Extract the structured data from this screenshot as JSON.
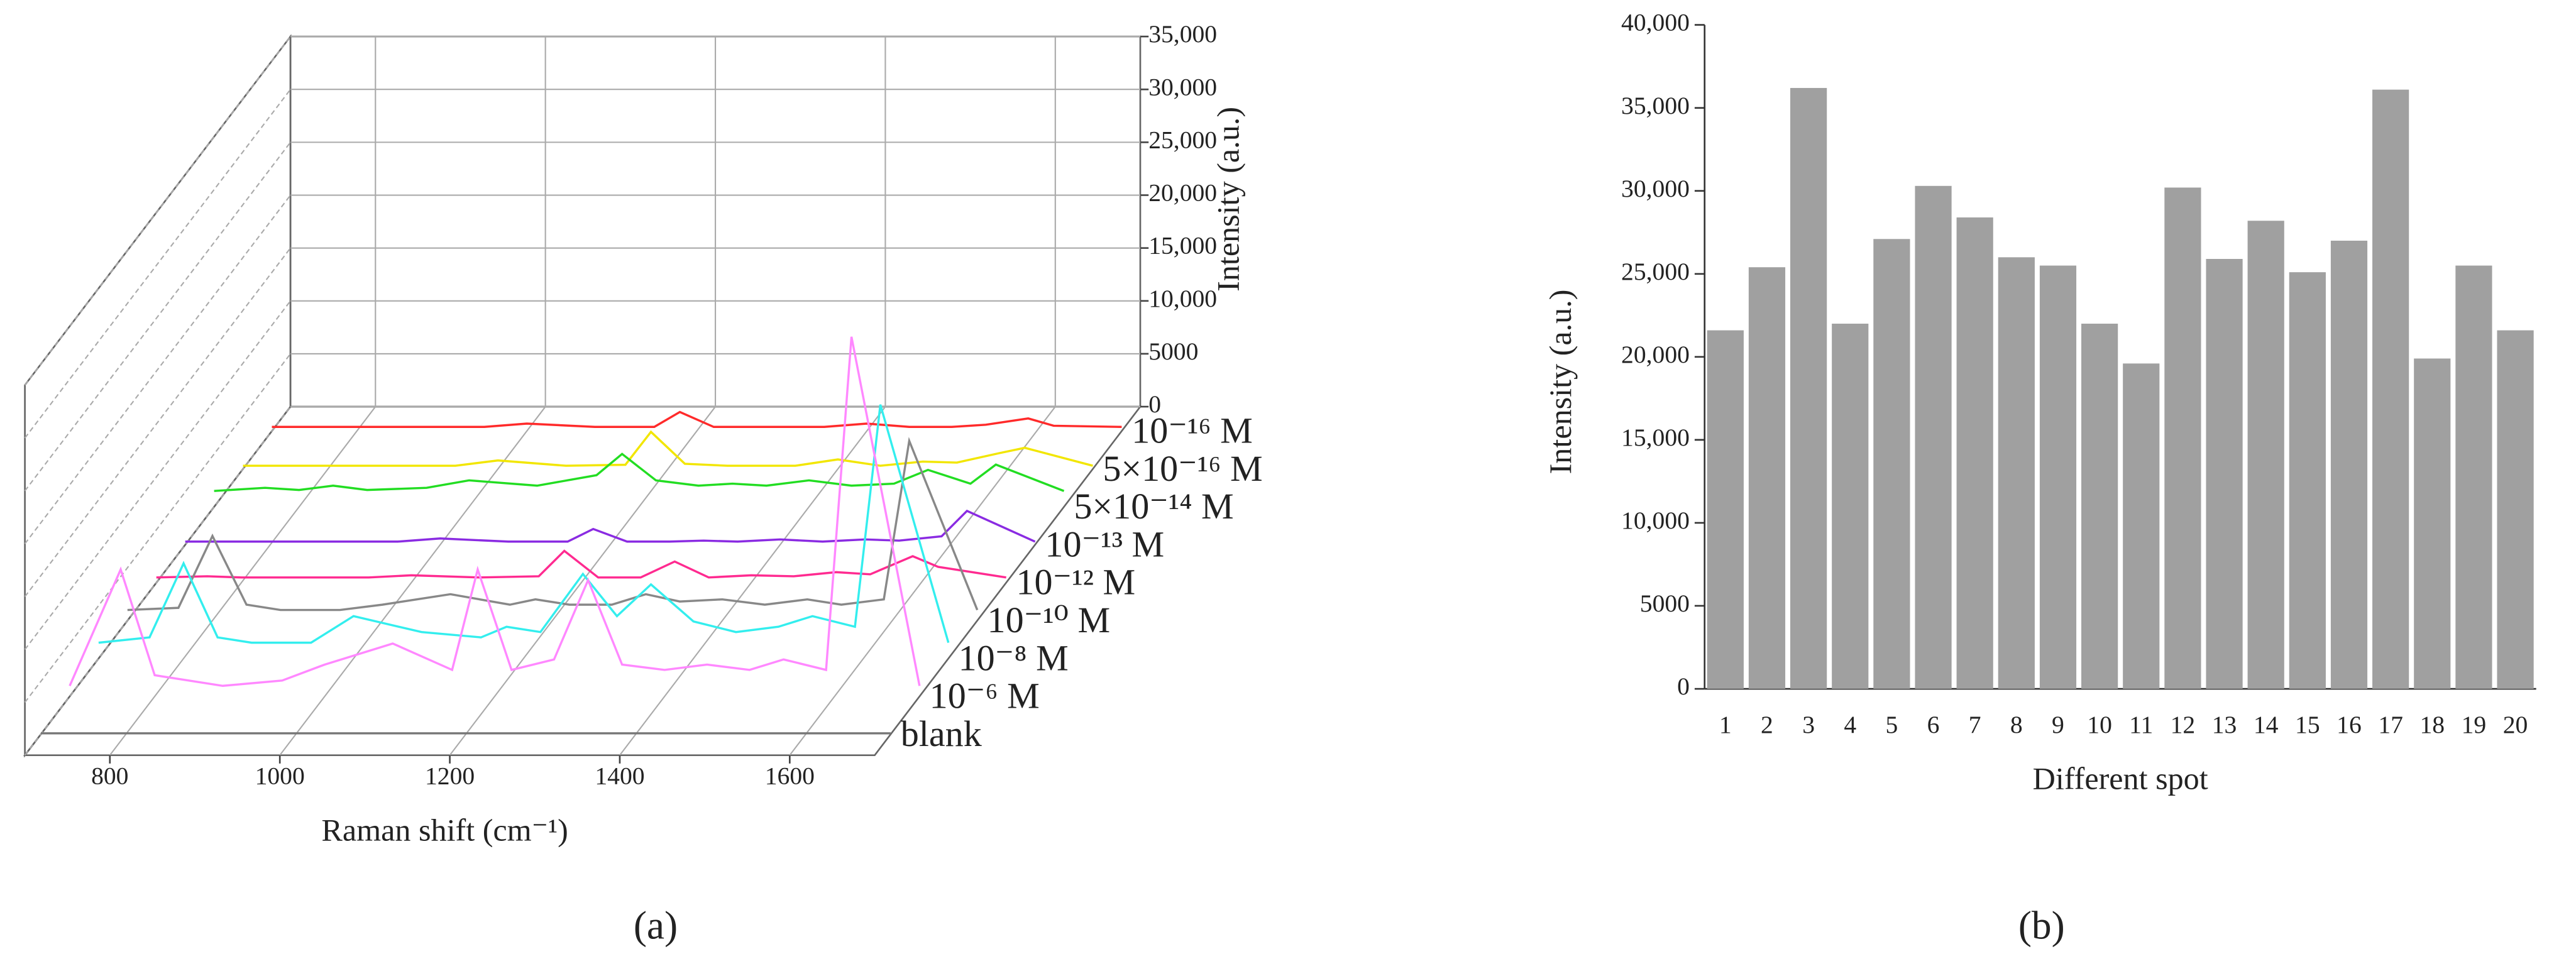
{
  "chart_data": [
    {
      "type": "waterfall",
      "label": "(a)",
      "x_label": "Raman shift (cm⁻¹)",
      "y_label": "Intensity (a.u.)",
      "x": [
        700,
        760,
        800,
        840,
        880,
        950,
        1000,
        1080,
        1150,
        1180,
        1220,
        1270,
        1310,
        1350,
        1400,
        1450,
        1500,
        1540,
        1590,
        1620,
        1700
      ],
      "xlim": [
        700,
        1700
      ],
      "xticks": [
        800,
        1000,
        1200,
        1400,
        1600
      ],
      "ylim": [
        0,
        35000
      ],
      "yticks": [
        0,
        5000,
        {
          "value": 10000,
          "label": "10,000"
        },
        {
          "value": 15000,
          "label": "15,000"
        },
        {
          "value": 20000,
          "label": "20,000"
        },
        {
          "value": 25000,
          "label": "25,000"
        },
        {
          "value": 30000,
          "label": "30,000"
        },
        {
          "value": 35000,
          "label": "35,000"
        }
      ],
      "grid": true,
      "series": [
        {
          "name": "10⁻¹⁶ M",
          "color": "#ff2a2a",
          "values": [
            400,
            400,
            400,
            400,
            400,
            400,
            700,
            400,
            400,
            1800,
            400,
            400,
            400,
            400,
            700,
            400,
            400,
            600,
            1200,
            500,
            400
          ]
        },
        {
          "name": "5×10⁻¹⁶ M",
          "color": "#f2e600",
          "values": [
            300,
            300,
            300,
            300,
            300,
            300,
            800,
            300,
            400,
            3500,
            500,
            300,
            300,
            300,
            900,
            300,
            700,
            600,
            1500,
            2000,
            300
          ]
        },
        {
          "name": "5×10⁻¹⁴ M",
          "color": "#22dd22",
          "values": [
            1500,
            1800,
            1600,
            2000,
            1600,
            1800,
            2500,
            2000,
            3000,
            5000,
            2500,
            2000,
            2200,
            2000,
            2500,
            2000,
            2200,
            3500,
            2200,
            4000,
            1500
          ]
        },
        {
          "name": "10⁻¹³ M",
          "color": "#8a2be2",
          "values": [
            300,
            300,
            300,
            300,
            300,
            300,
            600,
            300,
            300,
            1500,
            300,
            300,
            400,
            300,
            500,
            300,
            500,
            400,
            800,
            3200,
            300
          ]
        },
        {
          "name": "10⁻¹² M",
          "color": "#ff2a90",
          "values": [
            500,
            600,
            500,
            500,
            500,
            500,
            700,
            500,
            600,
            3000,
            500,
            500,
            2000,
            500,
            700,
            600,
            1000,
            800,
            2500,
            1500,
            500
          ]
        },
        {
          "name": "10⁻¹⁰ M",
          "color": "#888888",
          "values": [
            1000,
            1200,
            8000,
            1500,
            1000,
            1000,
            1500,
            2500,
            1500,
            2000,
            1500,
            1500,
            2500,
            1800,
            2000,
            1500,
            2000,
            1500,
            2000,
            17000,
            1000
          ]
        },
        {
          "name": "10⁻⁸ M",
          "color": "#33eeee",
          "values": [
            1500,
            2000,
            9000,
            2000,
            1500,
            1500,
            4000,
            2500,
            2000,
            3000,
            2500,
            8000,
            4000,
            7000,
            3500,
            2500,
            3000,
            4000,
            3000,
            24000,
            1500
          ]
        },
        {
          "name": "10⁻⁶ M",
          "color": "#ff88ff",
          "values": [
            1000,
            12000,
            2000,
            1500,
            1000,
            1500,
            3000,
            5000,
            2500,
            12000,
            2500,
            3500,
            11000,
            3000,
            2500,
            3000,
            2500,
            3500,
            2500,
            34000,
            1000
          ]
        },
        {
          "name": "blank",
          "color": "#777777",
          "values": [
            100,
            100,
            100,
            100,
            100,
            100,
            100,
            100,
            100,
            100,
            100,
            100,
            100,
            100,
            100,
            100,
            100,
            100,
            100,
            100,
            100
          ]
        }
      ]
    },
    {
      "type": "bar",
      "label": "(b)",
      "x_label": "Different spot",
      "y_label": "Intensity (a.u.)",
      "color": "#a0a0a0",
      "categories": [
        "1",
        "2",
        "3",
        "4",
        "5",
        "6",
        "7",
        "8",
        "9",
        "10",
        "11",
        "12",
        "13",
        "14",
        "15",
        "16",
        "17",
        "18",
        "19",
        "20"
      ],
      "values": [
        21600,
        25400,
        36200,
        22000,
        27100,
        30300,
        28400,
        26000,
        25500,
        22000,
        19600,
        30200,
        25900,
        28200,
        25100,
        27000,
        36100,
        19900,
        25500,
        21600
      ],
      "ylim": [
        0,
        40000
      ],
      "yticks": [
        0,
        5000,
        {
          "value": 10000,
          "label": "10,000"
        },
        {
          "value": 15000,
          "label": "15,000"
        },
        {
          "value": 20000,
          "label": "20,000"
        },
        {
          "value": 25000,
          "label": "25,000"
        },
        {
          "value": 30000,
          "label": "30,000"
        },
        {
          "value": 35000,
          "label": "35,000"
        },
        {
          "value": 40000,
          "label": "40,000"
        }
      ]
    }
  ]
}
